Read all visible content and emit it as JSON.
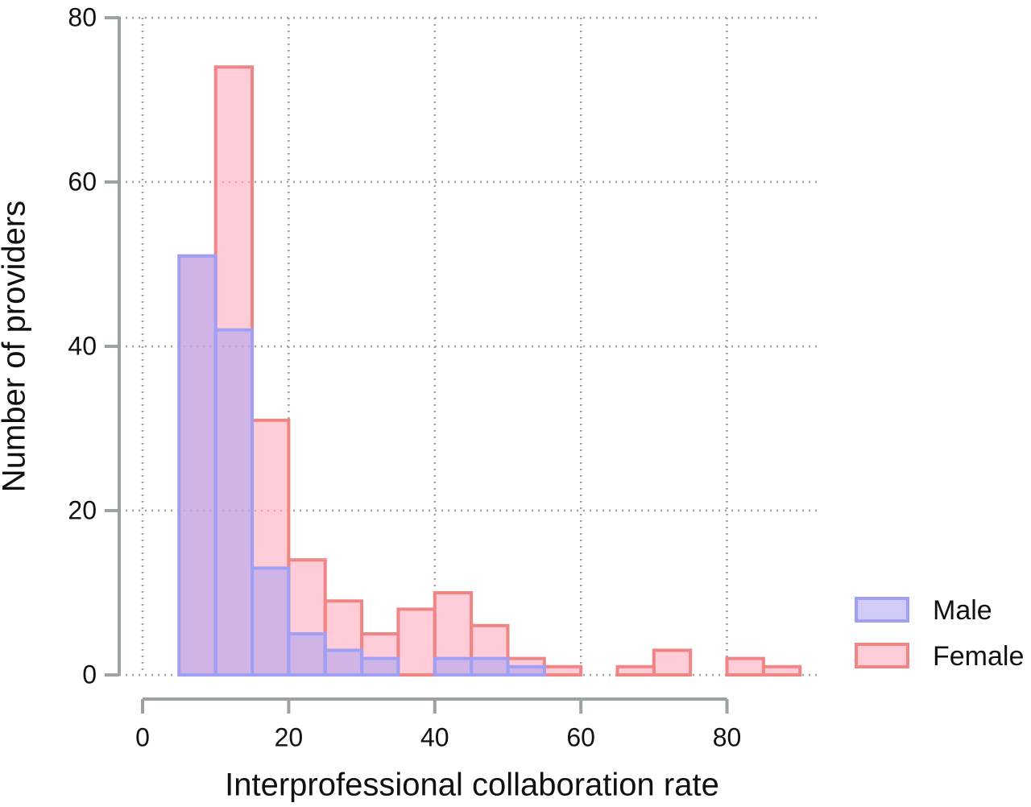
{
  "chart_data": {
    "type": "histogram",
    "x_label": "Interprofessional collaboration rate",
    "y_label": "Number of providers",
    "bins": [
      5,
      10,
      15,
      20,
      25,
      30,
      35,
      40,
      45,
      50,
      55,
      60,
      65,
      70,
      75,
      80,
      85,
      90
    ],
    "series": [
      {
        "name": "Female",
        "color": "#f08585",
        "fill": "rgba(255,170,190,0.6)",
        "values": [
          51,
          74,
          31,
          14,
          9,
          5,
          8,
          10,
          6,
          2,
          1,
          0,
          1,
          3,
          0,
          2,
          1
        ]
      },
      {
        "name": "Male",
        "color": "#9f9ff5",
        "fill": "rgba(170,160,240,0.55)",
        "values": [
          51,
          42,
          13,
          5,
          3,
          2,
          0,
          2,
          2,
          1,
          0,
          0,
          0,
          0,
          0,
          0,
          0
        ]
      }
    ],
    "legend_order": [
      1,
      0
    ],
    "xlim": [
      -3.2,
      92.4
    ],
    "ylim": [
      0,
      80
    ],
    "xticks": [
      0,
      20,
      40,
      60,
      80
    ],
    "yticks": [
      0,
      20,
      40,
      60,
      80
    ],
    "grid": true,
    "legend": "right"
  }
}
